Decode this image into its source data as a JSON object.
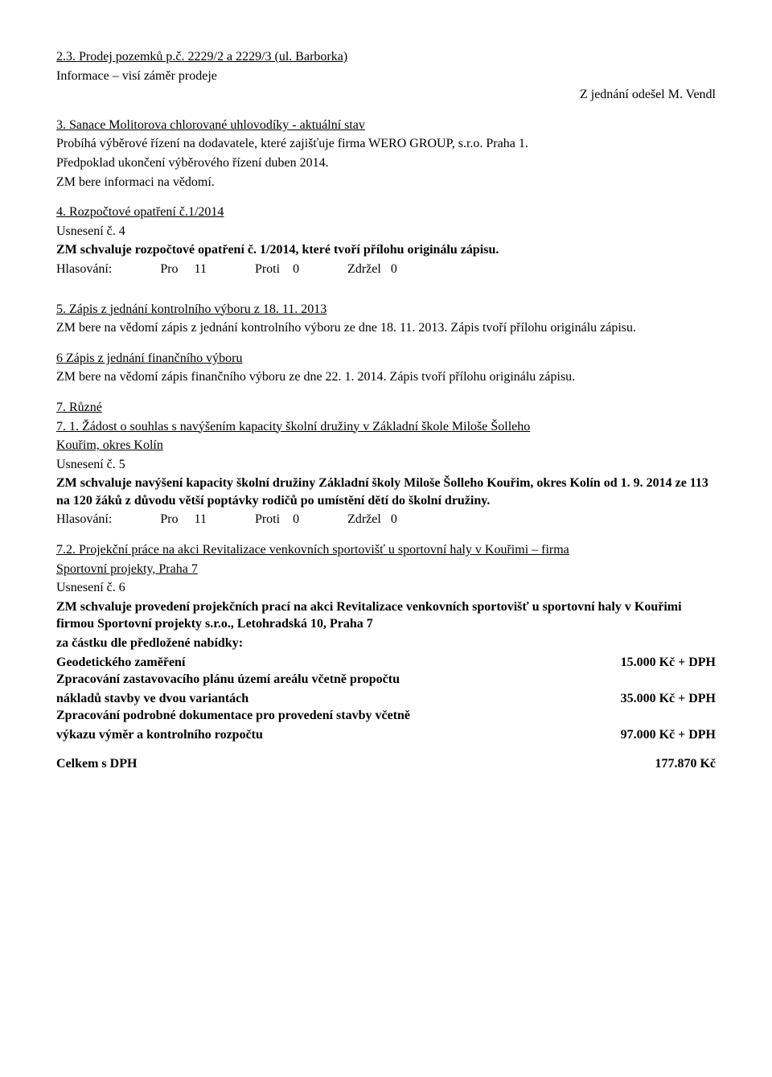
{
  "s23": {
    "heading": "2.3. Prodej pozemků p.č. 2229/2 a 2229/3 (ul. Barborka)",
    "line1": "Informace – visí záměr prodeje",
    "right": "Z jednání odešel M. Vendl"
  },
  "s3": {
    "heading": "3. Sanace Molitorova chlorované uhlovodíky  - aktuální stav",
    "line1": "Probíhá výběrové řízení na dodavatele, které zajišťuje firma WERO GROUP, s.r.o. Praha 1.",
    "line2": "Předpoklad ukončení výběrového řízení duben 2014.",
    "line3": "ZM bere informaci na vědomí."
  },
  "s4": {
    "heading": "4. Rozpočtové opatření č.1/2014",
    "usn": "Usnesení č. 4",
    "bold": "ZM schvaluje rozpočtové opatření č. 1/2014, které tvoří přílohu originálu zápisu.",
    "vote": "Hlasování:               Pro     11               Proti    0               Zdržel   0"
  },
  "s5": {
    "heading": "5. Zápis z jednání  kontrolního výboru z 18. 11. 2013",
    "line1": "ZM bere na vědomí zápis z jednání kontrolního výboru ze dne 18. 11. 2013. Zápis tvoří přílohu originálu zápisu."
  },
  "s6": {
    "heading": "6 Zápis z jednání finančního výboru",
    "line1": "ZM bere na vědomí zápis finančního výboru ze dne  22. 1. 2014. Zápis tvoří přílohu originálu zápisu."
  },
  "s7": {
    "heading": "7. Různé",
    "sub1a": "7. 1. Žádost o souhlas s navýšením kapacity školní družiny v Základní škole Miloše Šolleho",
    "sub1b": "Kouřim, okres Kolín",
    "usn": "Usnesení č. 5",
    "bold1": "ZM schvaluje navýšení kapacity školní družiny Základní školy Miloše Šolleho Kouřim, okres Kolín od 1. 9. 2014  ze 113 na 120 žáků z důvodu větší poptávky rodičů po umístění dětí do školní družiny.",
    "vote": "Hlasování:               Pro     11               Proti    0               Zdržel   0"
  },
  "s72": {
    "heading1": "7.2. Projekční práce na akci Revitalizace venkovních sportovišť u sportovní haly v Kouřimi – firma",
    "heading2": "Sportovní projekty, Praha 7",
    "usn": "Usnesení č. 6",
    "bold1": "ZM schvaluje provedení projekčních prací na akci Revitalizace venkovních sportovišť u sportovní haly v Kouřimi firmou Sportovní projekty s.r.o., Letohradská 10, Praha 7",
    "bold2": "za částku dle  předložené nabídky:",
    "row1l": "Geodetického zaměření",
    "row1r": "15.000 Kč  + DPH",
    "row2a": "Zpracování zastavovacího plánu území areálu včetně propočtu",
    "row2l": "nákladů stavby ve dvou variantách",
    "row2r": "35.000 Kč +  DPH",
    "row3a": "Zpracování podrobné dokumentace pro provedení stavby včetně",
    "row3l": "výkazu výměr a kontrolního rozpočtu",
    "row3r": "97.000 Kč + DPH",
    "totall": "Celkem  s DPH",
    "totalr": "177.870 Kč"
  }
}
